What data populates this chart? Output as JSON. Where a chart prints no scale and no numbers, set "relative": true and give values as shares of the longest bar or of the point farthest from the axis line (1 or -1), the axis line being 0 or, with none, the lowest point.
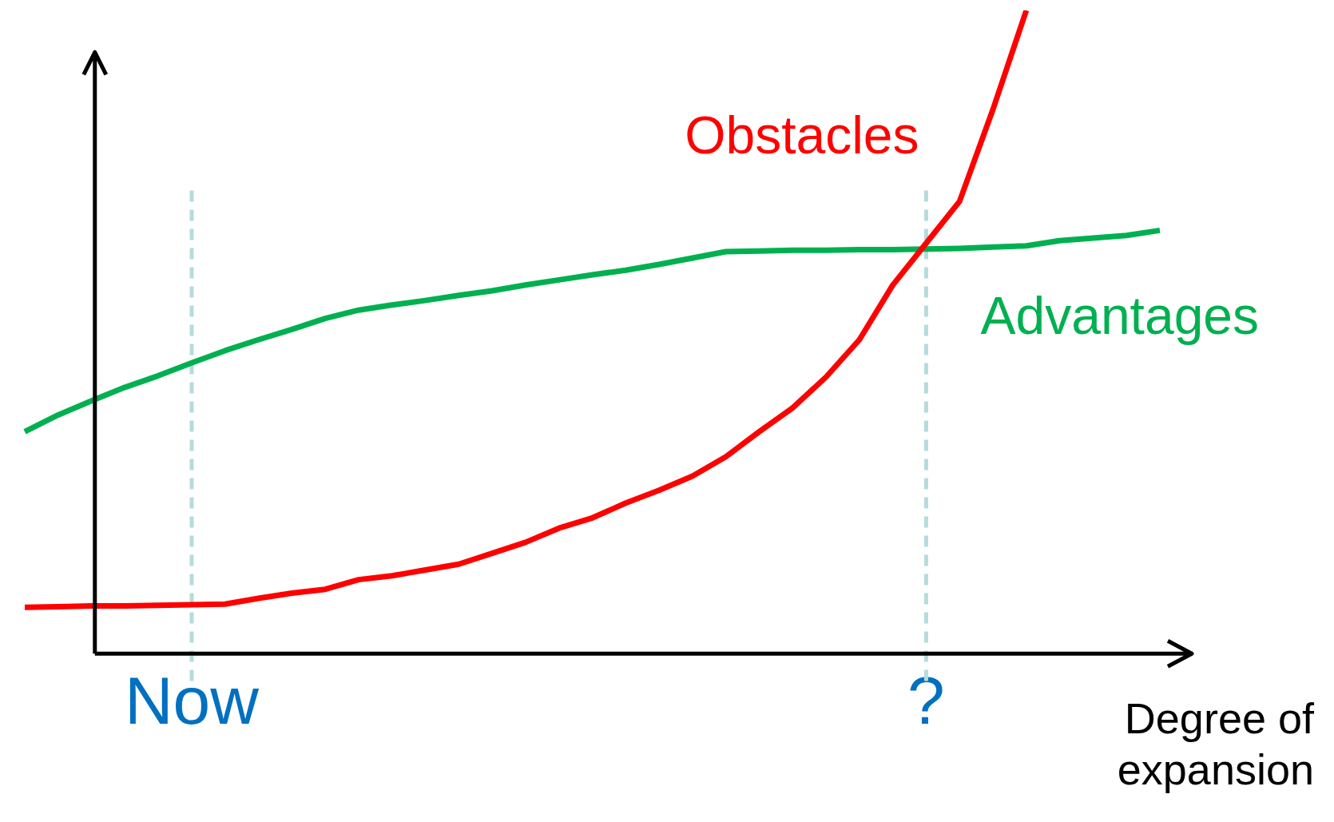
{
  "chart_data": {
    "type": "line",
    "relative": true,
    "xlabel": "Degree of expansion",
    "categories": [
      null,
      null,
      null,
      null,
      null,
      "Now",
      null,
      null,
      null,
      null,
      null,
      null,
      null,
      null,
      null,
      null,
      null,
      null,
      null,
      null,
      null,
      null,
      null,
      null,
      null,
      null,
      null,
      "?",
      null,
      null,
      null,
      null,
      null,
      null,
      null
    ],
    "series": [
      {
        "name": "Obstacles",
        "color": "#ff0000",
        "values": [
          0.072,
          0.073,
          0.074,
          0.074,
          0.075,
          0.076,
          0.077,
          0.086,
          0.094,
          0.1,
          0.115,
          0.121,
          0.13,
          0.139,
          0.156,
          0.173,
          0.195,
          0.211,
          0.234,
          0.254,
          0.276,
          0.306,
          0.345,
          0.382,
          0.43,
          0.488,
          0.573,
          0.638,
          0.703,
          0.846,
          1,
          null,
          null,
          null,
          null
        ]
      },
      {
        "name": "Advantages",
        "color": "#00b050",
        "values": [
          0.345,
          0.371,
          0.393,
          0.414,
          0.432,
          0.452,
          0.471,
          0.488,
          0.504,
          0.521,
          0.534,
          0.542,
          0.549,
          0.557,
          0.564,
          0.573,
          0.581,
          0.589,
          0.596,
          0.605,
          0.615,
          0.625,
          0.626,
          0.627,
          0.627,
          0.628,
          0.628,
          0.629,
          0.63,
          0.632,
          0.634,
          0.642,
          0.646,
          0.65,
          0.658
        ]
      }
    ],
    "ref_lines": [
      {
        "axis": "x",
        "value": "Now",
        "color": "#b4dcdc",
        "line_style": "dashed"
      },
      {
        "axis": "x",
        "value": "?",
        "color": "#b4dcdc",
        "line_style": "dashed"
      }
    ],
    "legend": false,
    "grid": false,
    "marker": "none",
    "line_style": "solid",
    "tick_labels": "x"
  }
}
